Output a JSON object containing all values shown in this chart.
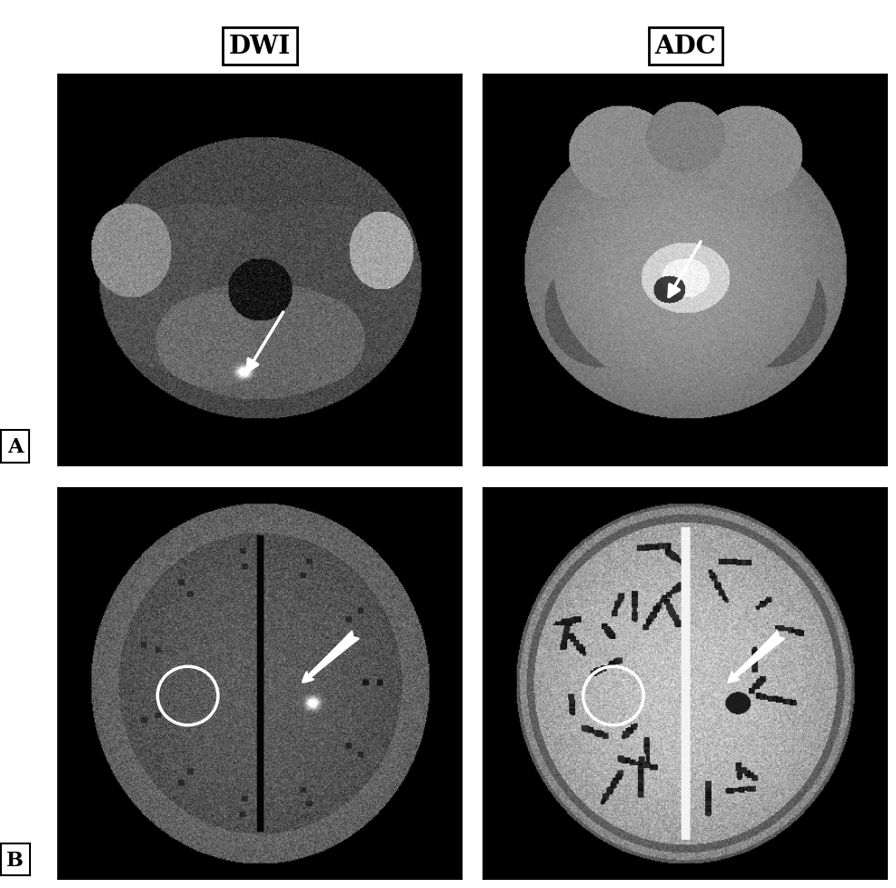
{
  "title_left": "DWI",
  "title_right": "ADC",
  "label_A": "A",
  "label_B": "B",
  "bg_color": "#ffffff",
  "panel_border_color": "#000000",
  "header_fontsize": 20,
  "label_fontsize": 16,
  "figsize": [
    9.86,
    9.78
  ],
  "dpi": 100
}
